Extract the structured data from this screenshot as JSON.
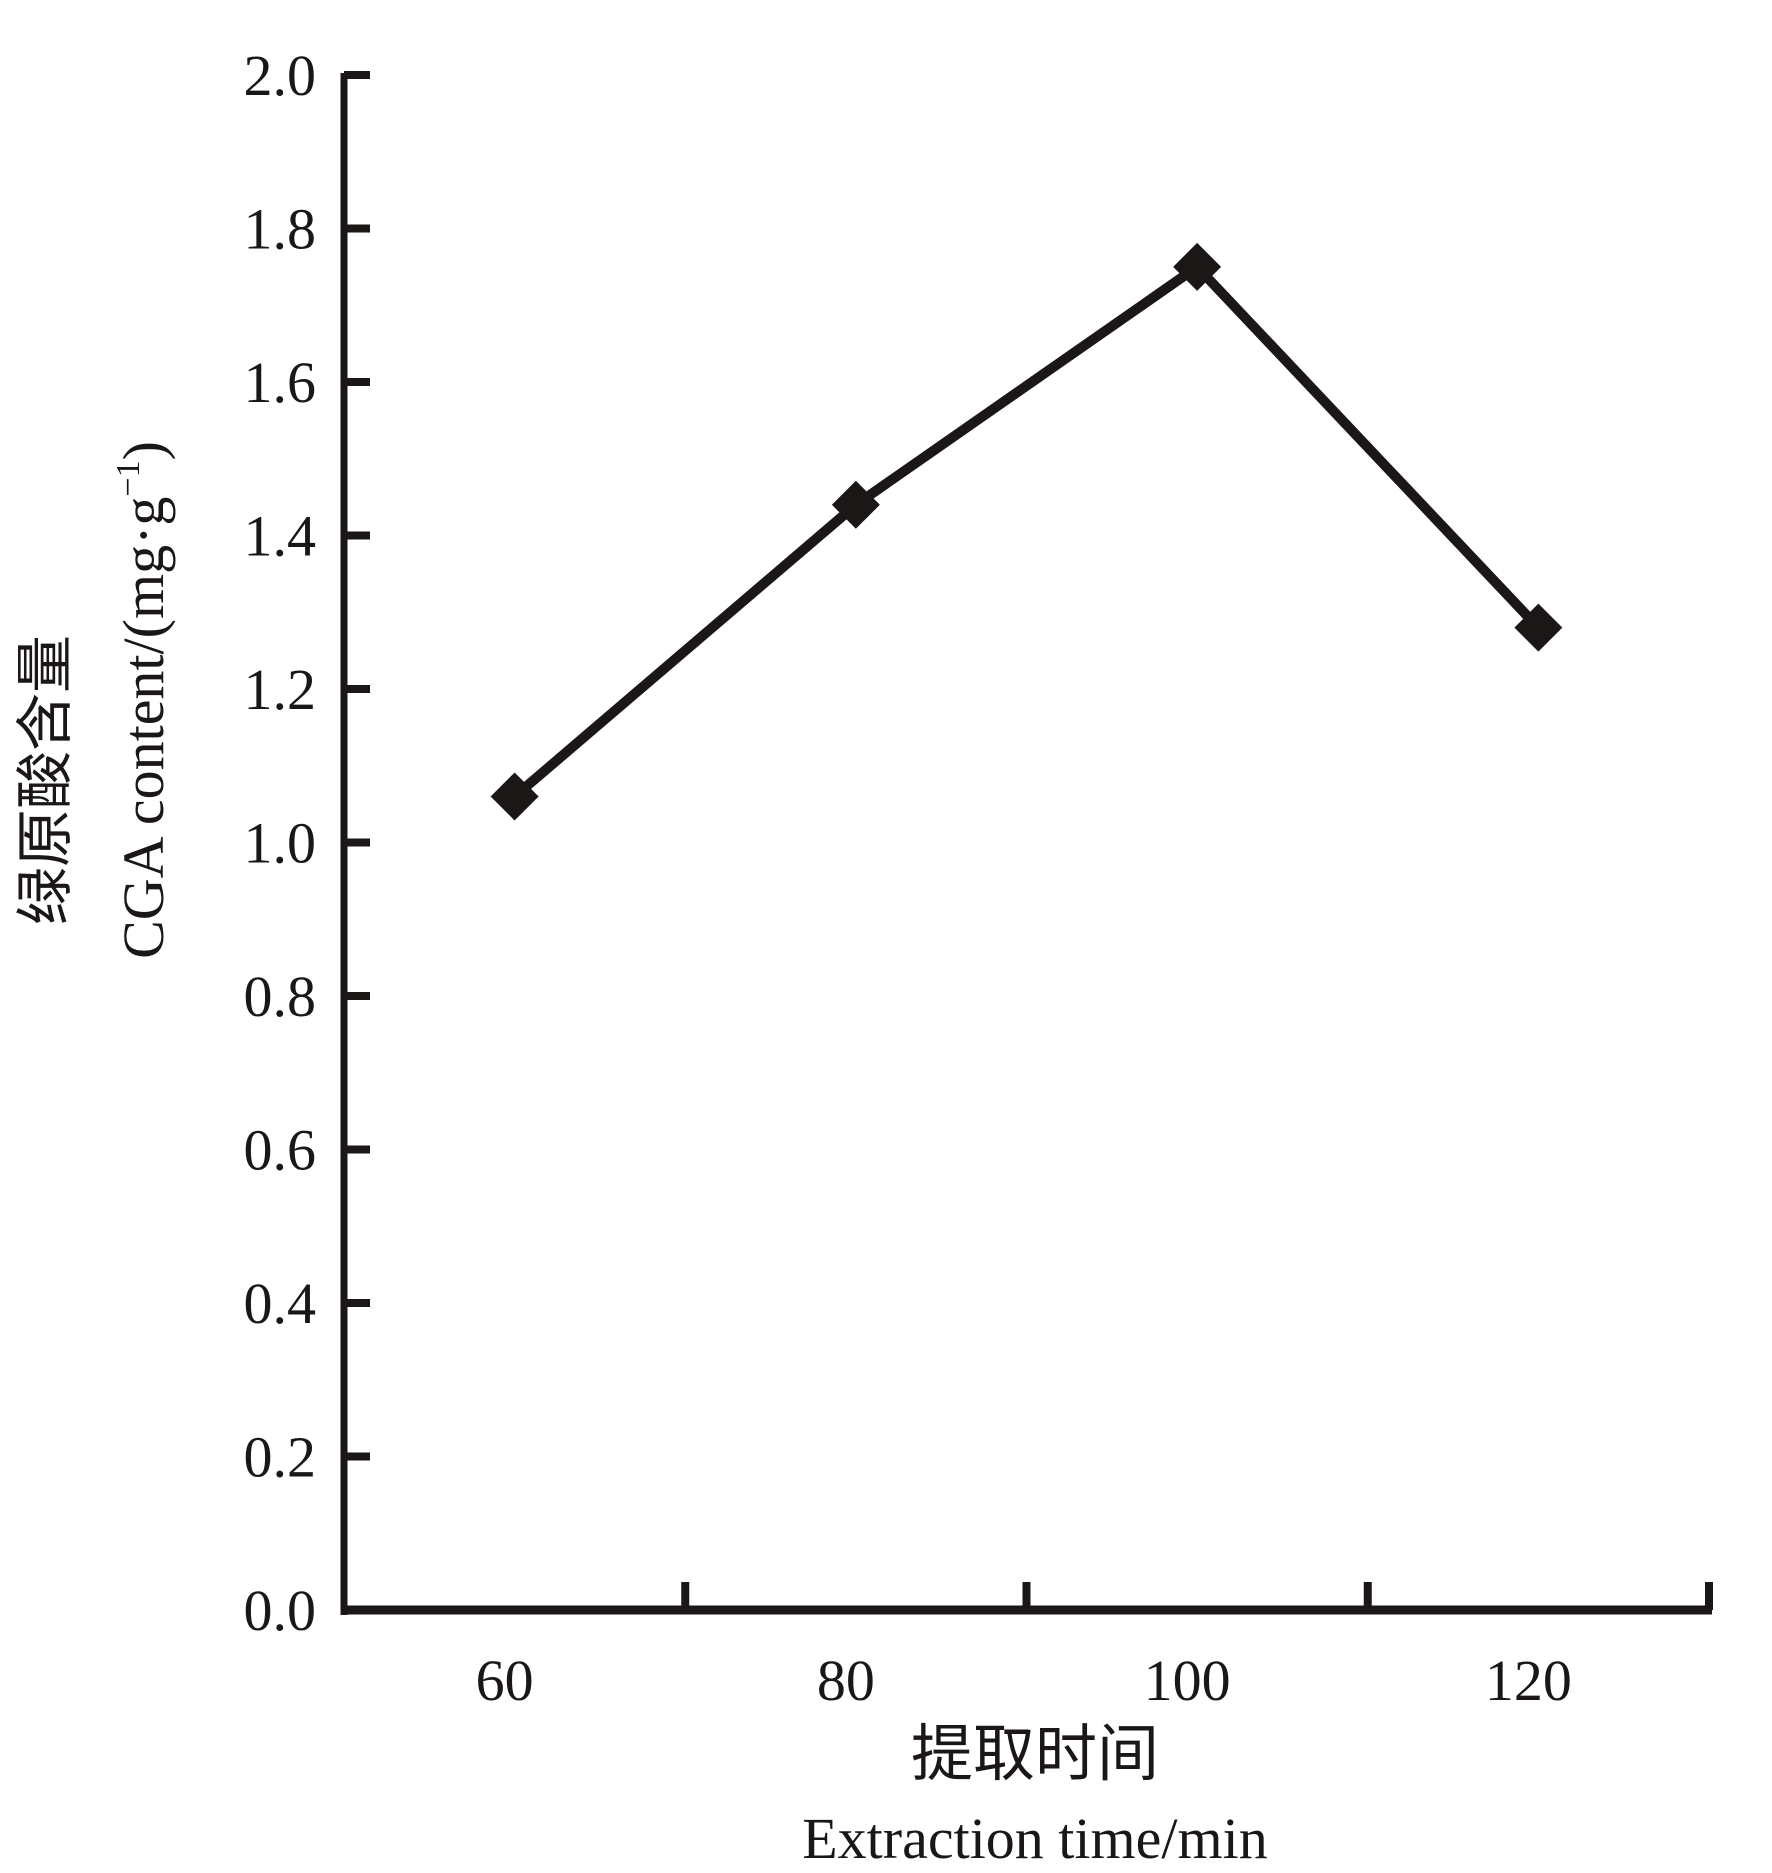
{
  "chart_data": {
    "type": "line",
    "title": "",
    "xlabel_cn": "提取时间",
    "xlabel": "Extraction time/min",
    "ylabel_cn": "绿原酸含量",
    "ylabel": "CGA content/(mg·g",
    "ylabel_sup": "−1",
    "ylabel_close": ")",
    "xlim": [
      50,
      130
    ],
    "ylim": [
      0,
      2.0
    ],
    "x_ticks": [
      60,
      80,
      100,
      120
    ],
    "x_minor_ticks": [
      70,
      90,
      110,
      130
    ],
    "y_ticks": [
      "0.0",
      "0.2",
      "0.4",
      "0.6",
      "0.8",
      "1.0",
      "1.2",
      "1.4",
      "1.6",
      "1.8",
      "2.0"
    ],
    "grid": false,
    "series": [
      {
        "name": "CGA content",
        "marker": "diamond",
        "color": "#1a1716",
        "x": [
          60,
          80,
          100,
          120
        ],
        "values": [
          1.06,
          1.44,
          1.75,
          1.28
        ]
      }
    ]
  }
}
